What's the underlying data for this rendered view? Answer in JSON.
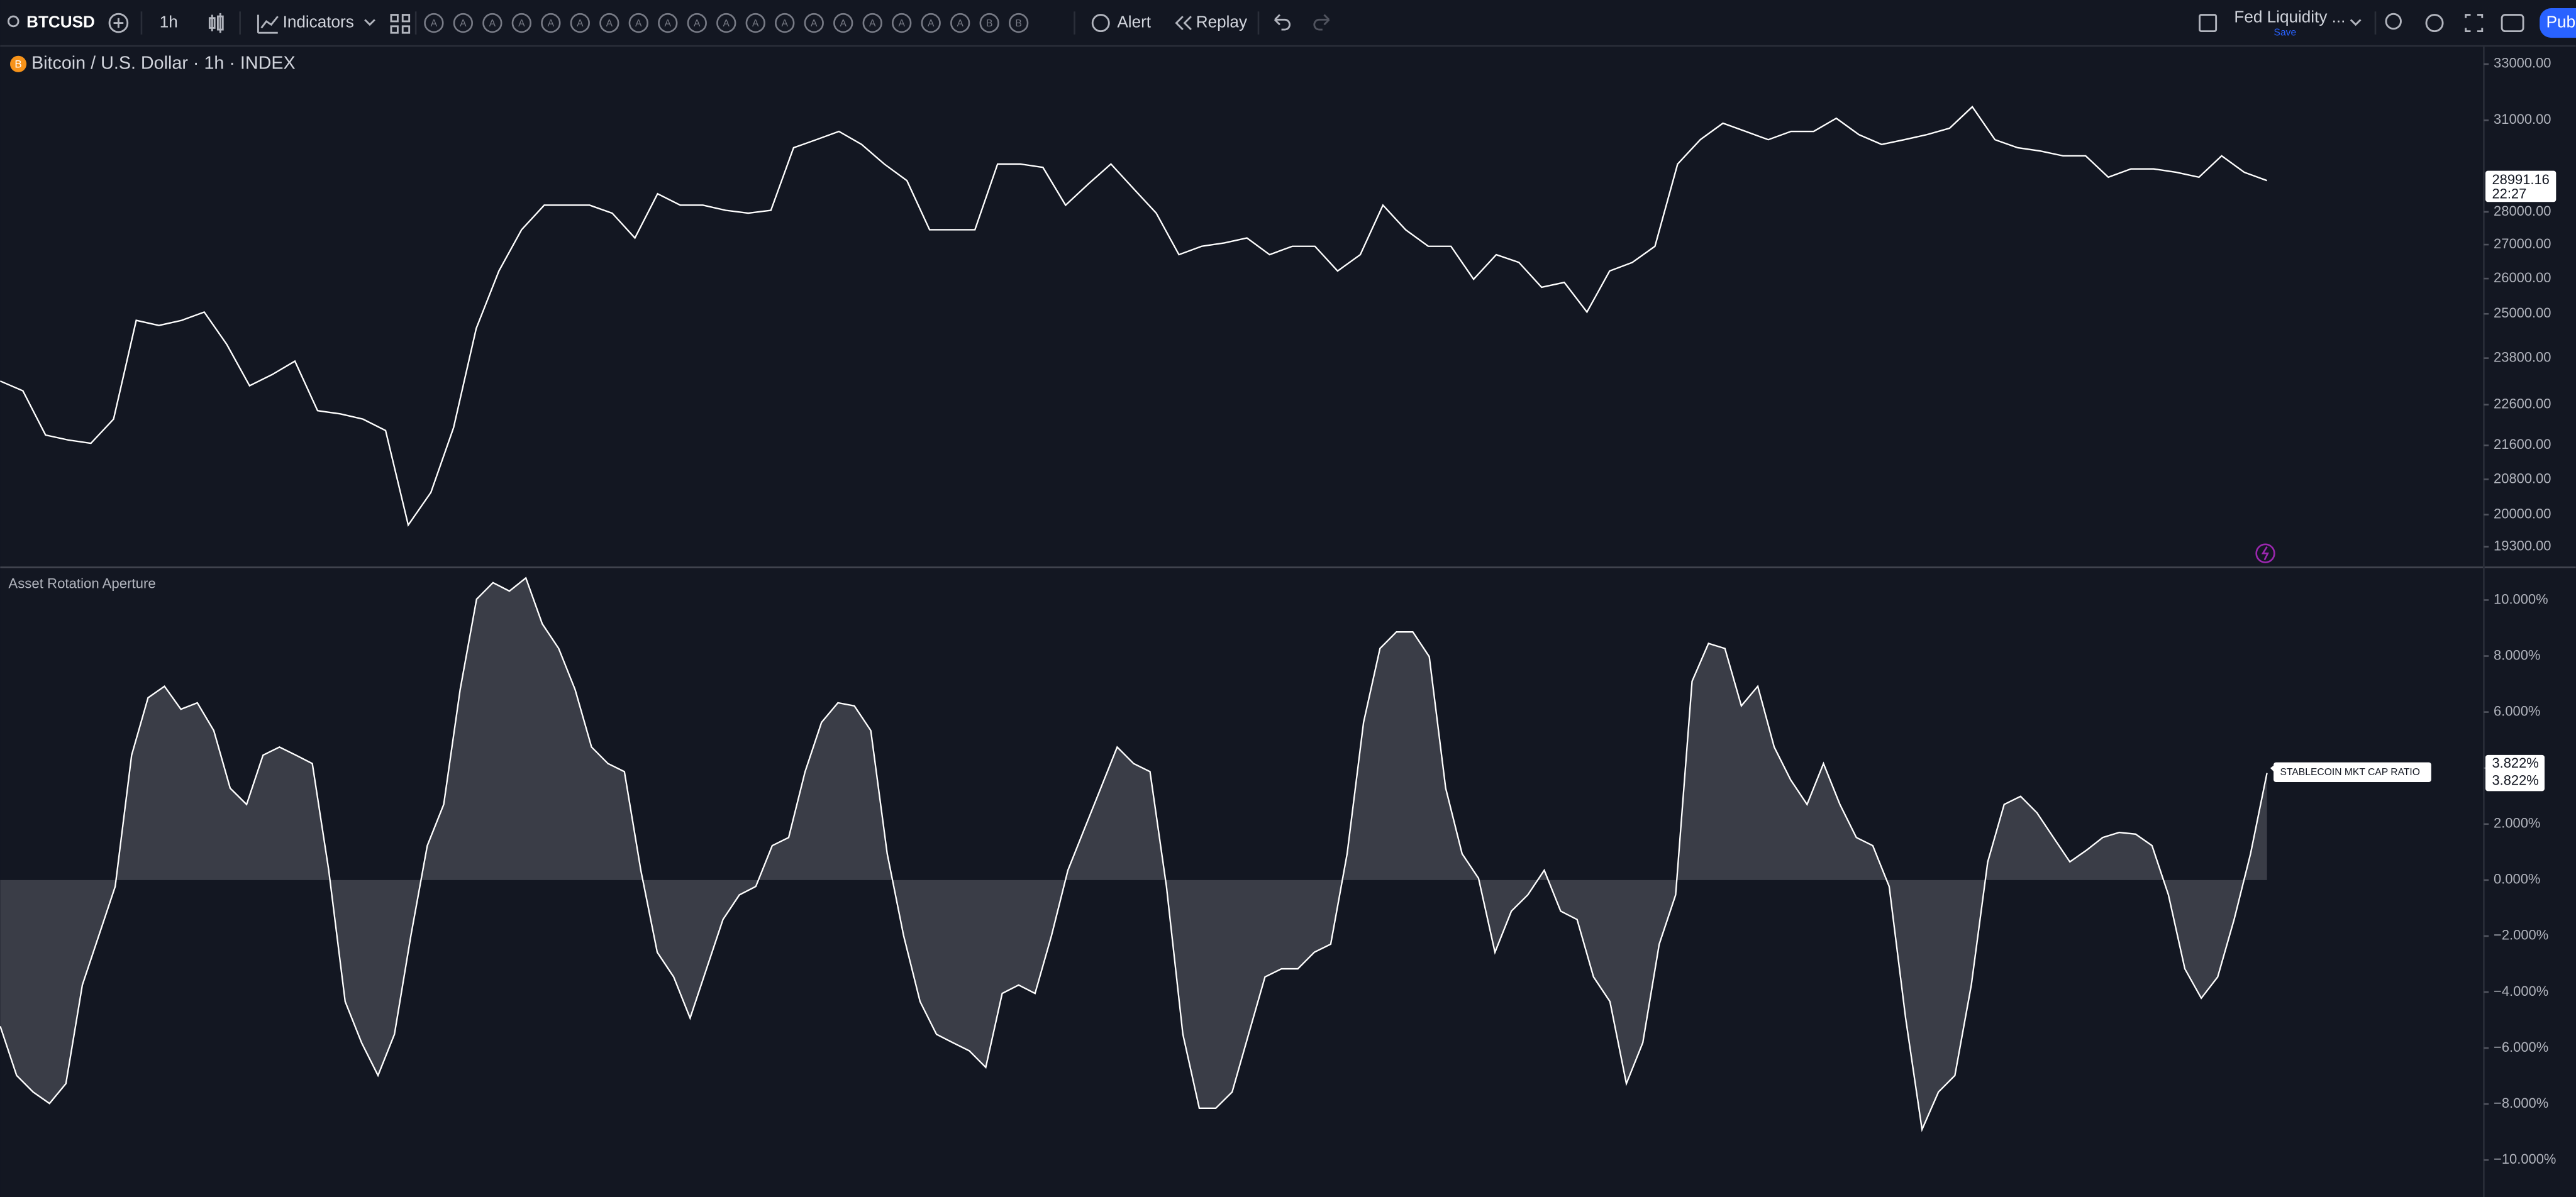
{
  "toolbar": {
    "symbol": "BTCUSD",
    "interval": "1h",
    "indicators": "Indicators",
    "drawing_tools": [
      "A",
      "A",
      "A",
      "A",
      "A",
      "A",
      "A",
      "A",
      "A",
      "A",
      "A",
      "A",
      "A",
      "A",
      "A",
      "A",
      "A",
      "A",
      "A",
      "B",
      "B"
    ],
    "alert": "Alert",
    "replay": "Replay",
    "layout_name": "Fed Liquidity ...",
    "save": "Save",
    "publish": "Pub"
  },
  "chart_data": [
    {
      "type": "line",
      "title": "Bitcoin / U.S. Dollar · 1h · INDEX",
      "icon": "B",
      "color": "#ffffff",
      "log_scale": true,
      "values": [
        23200,
        22950,
        21850,
        21730,
        21650,
        22240,
        24820,
        24680,
        24820,
        25050,
        24160,
        23080,
        23370,
        23720,
        22450,
        22370,
        22240,
        21960,
        19770,
        20500,
        22030,
        24600,
        26220,
        27450,
        28210,
        28210,
        28210,
        27960,
        27200,
        28570,
        28210,
        28210,
        28050,
        27960,
        28050,
        30070,
        30340,
        30620,
        30180,
        29530,
        28990,
        27450,
        27450,
        27450,
        29530,
        29530,
        29420,
        28210,
        28880,
        29530,
        28730,
        27960,
        26700,
        26950,
        27050,
        27200,
        26700,
        26950,
        26950,
        26220,
        26700,
        28210,
        27450,
        26950,
        26950,
        25980,
        26700,
        26470,
        25750,
        25890,
        25050,
        26220,
        26470,
        26950,
        29530,
        30340,
        30900,
        30620,
        30340,
        30620,
        30620,
        31070,
        30510,
        30180,
        30340,
        30510,
        30730,
        31470,
        30340,
        30070,
        29960,
        29800,
        29800,
        29100,
        29370,
        29370,
        29260,
        29100,
        29800,
        29260,
        28991.16
      ],
      "countdown": "22:27",
      "ylim": [
        18880,
        33670
      ],
      "yticks": [
        {
          "value": 33000,
          "label": "33000.00"
        },
        {
          "value": 31000,
          "label": "31000.00"
        },
        {
          "value": 28000,
          "label": "28000.00"
        },
        {
          "value": 27000,
          "label": "27000.00"
        },
        {
          "value": 26000,
          "label": "26000.00"
        },
        {
          "value": 25000,
          "label": "25000.00"
        },
        {
          "value": 23800,
          "label": "23800.00"
        },
        {
          "value": 22600,
          "label": "22600.00"
        },
        {
          "value": 21600,
          "label": "21600.00"
        },
        {
          "value": 20800,
          "label": "20800.00"
        },
        {
          "value": 20000,
          "label": "20000.00"
        },
        {
          "value": 19300,
          "label": "19300.00"
        }
      ]
    },
    {
      "type": "area",
      "title": "Asset Rotation Aperture",
      "color": "#ffffff",
      "fill_color": "#3a3d47",
      "values": [
        -5.22,
        -6.98,
        -7.57,
        -7.98,
        -7.27,
        -3.75,
        -1.99,
        -0.23,
        4.46,
        6.51,
        6.92,
        6.1,
        6.33,
        5.34,
        3.28,
        2.7,
        4.46,
        4.75,
        4.46,
        4.16,
        0.35,
        -4.34,
        -5.81,
        -6.98,
        -5.51,
        -1.99,
        1.23,
        2.7,
        6.8,
        10.03,
        10.62,
        10.32,
        10.79,
        9.15,
        8.27,
        6.8,
        4.75,
        4.16,
        3.87,
        0.35,
        -2.58,
        -3.46,
        -4.93,
        -3.17,
        -1.41,
        -0.53,
        -0.23,
        1.23,
        1.52,
        3.87,
        5.63,
        6.33,
        6.22,
        5.34,
        0.94,
        -1.99,
        -4.34,
        -5.51,
        -5.81,
        -6.1,
        -6.69,
        -4.05,
        -3.75,
        -4.05,
        -1.99,
        0.35,
        1.82,
        3.28,
        4.75,
        4.16,
        3.87,
        -0.23,
        -5.51,
        -8.15,
        -8.15,
        -7.57,
        -5.51,
        -3.46,
        -3.17,
        -3.17,
        -2.58,
        -2.29,
        0.94,
        5.63,
        8.27,
        8.86,
        8.86,
        7.98,
        3.28,
        0.94,
        0.06,
        -2.58,
        -1.11,
        -0.53,
        0.35,
        -1.11,
        -1.41,
        -3.46,
        -4.34,
        -7.27,
        -5.81,
        -2.29,
        -0.53,
        7.1,
        8.45,
        8.27,
        6.22,
        6.92,
        4.75,
        3.58,
        2.7,
        4.16,
        2.7,
        1.52,
        1.23,
        -0.23,
        -4.93,
        -8.91,
        -7.57,
        -6.98,
        -3.75,
        0.65,
        2.7,
        2.99,
        2.4,
        1.52,
        0.65,
        1.06,
        1.52,
        1.7,
        1.64,
        1.23,
        -0.53,
        -3.17,
        -4.22,
        -3.46,
        -1.41,
        0.94,
        3.822
      ],
      "last_value_label": "3.822%",
      "series_tag": "STABLECOIN MKT CAP RATIO",
      "ylim": [
        -11.32,
        11.14
      ],
      "yticks": [
        {
          "value": 10,
          "label": "10.000%"
        },
        {
          "value": 8,
          "label": "8.000%"
        },
        {
          "value": 6,
          "label": "6.000%"
        },
        {
          "value": 4,
          "label": "4.000%"
        },
        {
          "value": 2,
          "label": "2.000%"
        },
        {
          "value": 0,
          "label": "0.000%"
        },
        {
          "value": -2,
          "label": "−2.000%"
        },
        {
          "value": -4,
          "label": "−4.000%"
        },
        {
          "value": -6,
          "label": "−6.000%"
        },
        {
          "value": -8,
          "label": "−8.000%"
        },
        {
          "value": -10,
          "label": "−10.000%"
        }
      ]
    }
  ]
}
